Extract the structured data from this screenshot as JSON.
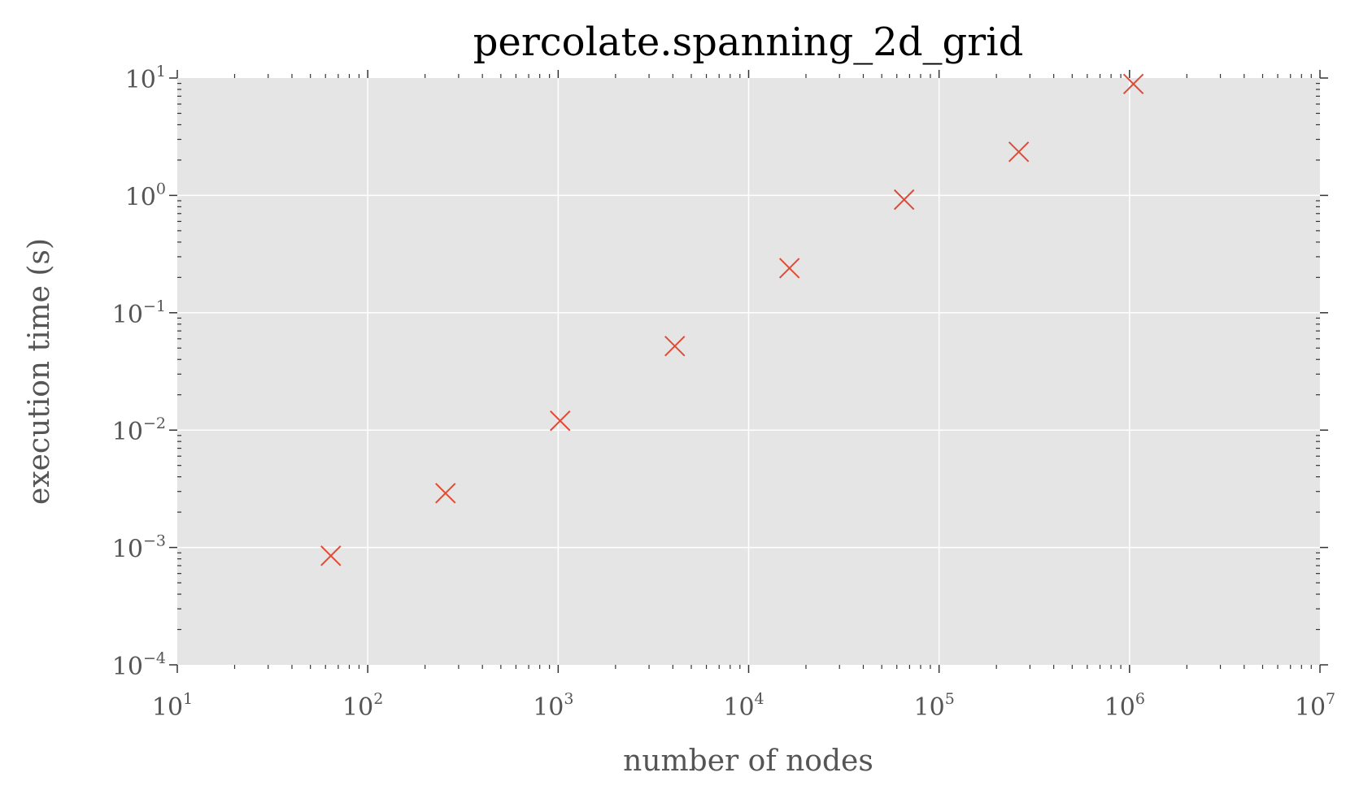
{
  "chart_data": {
    "type": "scatter",
    "title": "percolate.spanning_2d_grid",
    "xlabel": "number of nodes",
    "ylabel": "execution time (s)",
    "xscale": "log",
    "yscale": "log",
    "xlim": [
      10,
      10000000
    ],
    "ylim": [
      0.0001,
      10
    ],
    "grid": true,
    "marker": "x",
    "x_ticks": [
      {
        "base": "10",
        "exp": "1",
        "value": 10
      },
      {
        "base": "10",
        "exp": "2",
        "value": 100
      },
      {
        "base": "10",
        "exp": "3",
        "value": 1000
      },
      {
        "base": "10",
        "exp": "4",
        "value": 10000
      },
      {
        "base": "10",
        "exp": "5",
        "value": 100000
      },
      {
        "base": "10",
        "exp": "6",
        "value": 1000000
      },
      {
        "base": "10",
        "exp": "7",
        "value": 10000000
      }
    ],
    "y_ticks": [
      {
        "base": "10",
        "exp": "−4",
        "value": 0.0001
      },
      {
        "base": "10",
        "exp": "−3",
        "value": 0.001
      },
      {
        "base": "10",
        "exp": "−2",
        "value": 0.01
      },
      {
        "base": "10",
        "exp": "−1",
        "value": 0.1
      },
      {
        "base": "10",
        "exp": "0",
        "value": 1
      },
      {
        "base": "10",
        "exp": "1",
        "value": 10
      }
    ],
    "series": [
      {
        "x": [
          64,
          256,
          1024,
          4096,
          16384,
          65536,
          262144,
          1048576
        ],
        "y": [
          0.00085,
          0.0029,
          0.012,
          0.052,
          0.24,
          0.92,
          2.35,
          8.9
        ]
      }
    ],
    "colors": {
      "background": "#e5e5e5",
      "grid": "#ffffff",
      "marker": "#e24a33",
      "text": "#555555",
      "title": "#000000"
    }
  }
}
